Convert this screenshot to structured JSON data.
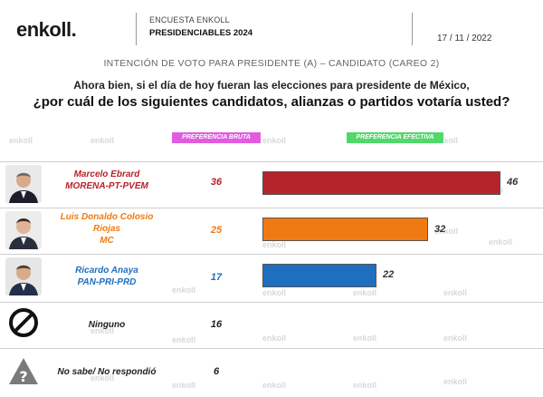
{
  "header": {
    "logo": "enkoll.",
    "org": "ENCUESTA ENKOLL",
    "subtitle": "PRESIDENCIABLES 2024",
    "date": "17 / 11 / 2022"
  },
  "watermark": "enkoll",
  "chart_data": {
    "type": "bar",
    "title": "INTENCIÓN DE VOTO PARA PRESIDENTE (A) – CANDIDATO (CAREO 2)",
    "question_line1": "Ahora bien, si el día de hoy fueran las elecciones para presidente de México,",
    "question_line2": "¿por cuál de los siguientes candidatos, alianzas o partidos votaría usted?",
    "column_headers": {
      "bruta": "PREFERENCIA BRUTA",
      "efectiva": "PREFERENCIA EFECTIVA"
    },
    "xlim": [
      0,
      46
    ],
    "rows": [
      {
        "name": "Marcelo Ebrard",
        "party": "MORENA-PT-PVEM",
        "bruta": 36,
        "efectiva": 46,
        "color": "#b5232b"
      },
      {
        "name": "Luis Donaldo Colosio Riojas",
        "name_line1": "Luis Donaldo Colosio",
        "name_line2": "Riojas",
        "party": "MC",
        "bruta": 25,
        "efectiva": 32,
        "color": "#f07a12"
      },
      {
        "name": "Ricardo Anaya",
        "party": "PAN-PRI-PRD",
        "bruta": 17,
        "efectiva": 22,
        "color": "#1f6fc0"
      },
      {
        "name": "Ninguno",
        "bruta": 16
      },
      {
        "name": "No sabe/ No respondió",
        "bruta": 6
      }
    ]
  }
}
